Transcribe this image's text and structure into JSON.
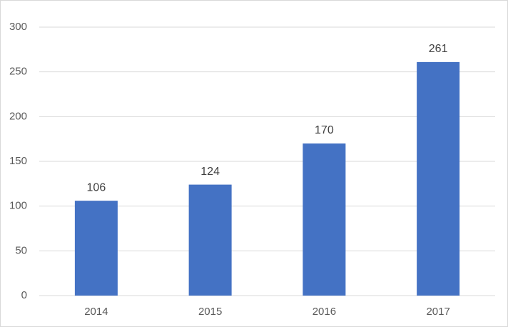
{
  "chart_data": {
    "type": "bar",
    "categories": [
      "2014",
      "2015",
      "2016",
      "2017"
    ],
    "values": [
      106,
      124,
      170,
      261
    ],
    "color": "#4472c4",
    "ylim": [
      0,
      300
    ],
    "yticks": [
      0,
      50,
      100,
      150,
      200,
      250,
      300
    ],
    "grid": true,
    "data_labels": true
  }
}
